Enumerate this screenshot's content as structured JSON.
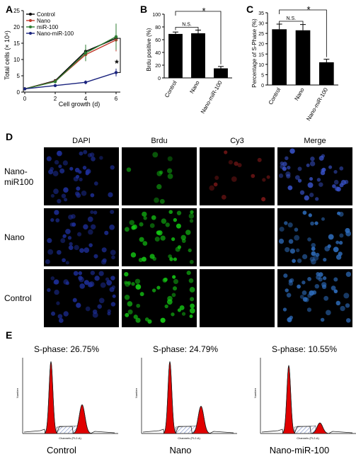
{
  "panels": {
    "A": {
      "letter": "A"
    },
    "B": {
      "letter": "B"
    },
    "C": {
      "letter": "C"
    },
    "D": {
      "letter": "D"
    },
    "E": {
      "letter": "E"
    }
  },
  "chart_data": [
    {
      "id": "A",
      "type": "line",
      "xlabel": "Cell growth (d)",
      "ylabel": "Total cells (× 10⁴)",
      "x": [
        0,
        2,
        4,
        6
      ],
      "xlim": [
        0,
        6
      ],
      "ylim": [
        0,
        25
      ],
      "xticks": [
        "0",
        "2",
        "4",
        "6"
      ],
      "yticks": [
        "0",
        "5",
        "10",
        "15",
        "20",
        "25"
      ],
      "series": [
        {
          "name": "Control",
          "values": [
            1,
            3.5,
            12.5,
            16.5
          ],
          "errors": [
            0.2,
            0.4,
            2,
            4
          ],
          "color": "#000000"
        },
        {
          "name": "Nano",
          "values": [
            1,
            3.3,
            11.5,
            16
          ],
          "errors": [
            0.2,
            0.4,
            2,
            3.5
          ],
          "color": "#c0392b"
        },
        {
          "name": "miR-100",
          "values": [
            1,
            3.2,
            12,
            17
          ],
          "errors": [
            0.2,
            0.4,
            2.5,
            4
          ],
          "color": "#2e7d32"
        },
        {
          "name": "Nano-miR-100",
          "values": [
            1,
            2,
            3,
            6
          ],
          "errors": [
            0.2,
            0.3,
            0.6,
            1.2
          ],
          "color": "#1a237e"
        }
      ],
      "significance": "*",
      "legend": "top-left"
    },
    {
      "id": "B",
      "type": "bar",
      "ylabel": "Brdu positive (%)",
      "categories": [
        "Control",
        "Nano",
        "Nano-miR-100"
      ],
      "values": [
        69,
        70,
        15
      ],
      "errors": [
        3,
        5,
        3
      ],
      "ylim": [
        0,
        100
      ],
      "yticks": [
        "0",
        "20",
        "40",
        "60",
        "80",
        "100"
      ],
      "annotations": [
        "N.S.",
        "*"
      ]
    },
    {
      "id": "C",
      "type": "bar",
      "ylabel": "Percentage of S-Phase (%)",
      "categories": [
        "Control",
        "Nano",
        "Nano-miR-100"
      ],
      "values": [
        27,
        26.5,
        11
      ],
      "errors": [
        2.5,
        2.8,
        1.5
      ],
      "ylim": [
        0,
        35
      ],
      "yticks": [
        "0",
        "5",
        "10",
        "15",
        "20",
        "25",
        "30",
        "35"
      ],
      "annotations": [
        "N.S.",
        "*"
      ]
    }
  ],
  "microscopy": {
    "columns": [
      "DAPI",
      "Brdu",
      "Cy3",
      "Merge"
    ],
    "rows": [
      "Nano-\nmiR100",
      "Nano",
      "Control"
    ]
  },
  "flow": [
    {
      "label": "Control",
      "sphase": "S-phase: 26.75%"
    },
    {
      "label": "Nano",
      "sphase": "S-phase: 24.79%"
    },
    {
      "label": "Nano-miR-100",
      "sphase": "S-phase: 10.55%"
    }
  ],
  "flow_axis": {
    "ylabel": "Number",
    "xlabel": "Channels (FL2-A)"
  },
  "colors": {
    "bar": "#000000",
    "red_peak": "#e00000",
    "hatch": "#8aa0d0"
  }
}
